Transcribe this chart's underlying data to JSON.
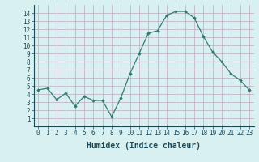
{
  "x": [
    0,
    1,
    2,
    3,
    4,
    5,
    6,
    7,
    8,
    9,
    10,
    11,
    12,
    13,
    14,
    15,
    16,
    17,
    18,
    19,
    20,
    21,
    22,
    23
  ],
  "y": [
    4.5,
    4.7,
    3.3,
    4.1,
    2.5,
    3.7,
    3.2,
    3.2,
    1.2,
    3.5,
    6.5,
    9.0,
    11.5,
    11.8,
    13.7,
    14.2,
    14.2,
    13.4,
    11.1,
    9.2,
    8.0,
    6.5,
    5.7,
    4.5
  ],
  "line_color": "#2e7d6e",
  "marker": "D",
  "marker_size": 1.8,
  "line_width": 0.9,
  "xlabel": "Humidex (Indice chaleur)",
  "xlabel_fontsize": 7,
  "xlim": [
    -0.5,
    23.5
  ],
  "ylim": [
    0,
    15
  ],
  "yticks": [
    1,
    2,
    3,
    4,
    5,
    6,
    7,
    8,
    9,
    10,
    11,
    12,
    13,
    14
  ],
  "xticks": [
    0,
    1,
    2,
    3,
    4,
    5,
    6,
    7,
    8,
    9,
    10,
    11,
    12,
    13,
    14,
    15,
    16,
    17,
    18,
    19,
    20,
    21,
    22,
    23
  ],
  "xtick_labels": [
    "0",
    "1",
    "2",
    "3",
    "4",
    "5",
    "6",
    "7",
    "8",
    "9",
    "10",
    "11",
    "12",
    "13",
    "14",
    "15",
    "16",
    "17",
    "18",
    "19",
    "20",
    "21",
    "22",
    "23"
  ],
  "bg_color": "#d9f0f0",
  "grid_color": "#c0a8c0",
  "tick_fontsize": 5.5,
  "xlabel_color": "#1a4a5a",
  "line_color_hex": "#2d6b5e"
}
